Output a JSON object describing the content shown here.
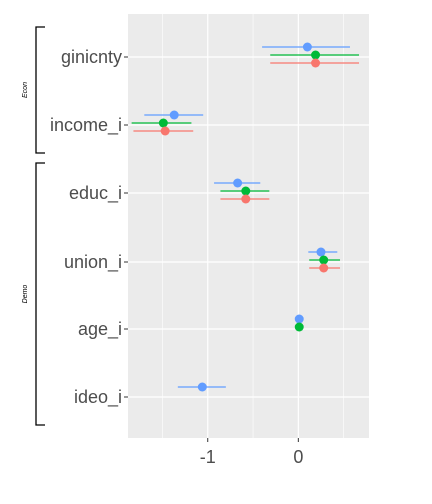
{
  "chart_data": {
    "type": "scatter",
    "variant": "coefficient-plot",
    "categories": [
      "ginicnty",
      "income_i",
      "educ_i",
      "union_i",
      "age_i",
      "ideo_i"
    ],
    "x_ticks": [
      -1,
      0
    ],
    "x_tick_labels": [
      "-1",
      "0"
    ],
    "xlim": [
      -1.88,
      0.78
    ],
    "grid": true,
    "legend": "none",
    "groups": [
      {
        "label": "Econ",
        "categories": [
          "ginicnty",
          "income_i"
        ]
      },
      {
        "label": "Demo",
        "categories": [
          "educ_i",
          "union_i",
          "age_i",
          "ideo_i"
        ]
      }
    ],
    "series": [
      {
        "color": "#619CFF",
        "points": [
          {
            "category": "ginicnty",
            "estimate": 0.1,
            "low": -0.4,
            "high": 0.57
          },
          {
            "category": "income_i",
            "estimate": -1.37,
            "low": -1.7,
            "high": -1.05
          },
          {
            "category": "educ_i",
            "estimate": -0.67,
            "low": -0.93,
            "high": -0.42
          },
          {
            "category": "union_i",
            "estimate": 0.25,
            "low": 0.11,
            "high": 0.43
          },
          {
            "category": "age_i",
            "estimate": 0.01,
            "low": 0.0,
            "high": 0.02
          },
          {
            "category": "ideo_i",
            "estimate": -1.06,
            "low": -1.33,
            "high": -0.8
          }
        ]
      },
      {
        "color": "#00BA38",
        "points": [
          {
            "category": "ginicnty",
            "estimate": 0.19,
            "low": -0.31,
            "high": 0.67
          },
          {
            "category": "income_i",
            "estimate": -1.49,
            "low": -1.84,
            "high": -1.18
          },
          {
            "category": "educ_i",
            "estimate": -0.58,
            "low": -0.86,
            "high": -0.32
          },
          {
            "category": "union_i",
            "estimate": 0.28,
            "low": 0.12,
            "high": 0.46
          },
          {
            "category": "age_i",
            "estimate": 0.01,
            "low": 0.0,
            "high": 0.02
          }
        ]
      },
      {
        "color": "#F8766D",
        "points": [
          {
            "category": "ginicnty",
            "estimate": 0.19,
            "low": -0.31,
            "high": 0.67
          },
          {
            "category": "income_i",
            "estimate": -1.47,
            "low": -1.82,
            "high": -1.16
          },
          {
            "category": "educ_i",
            "estimate": -0.58,
            "low": -0.86,
            "high": -0.32
          },
          {
            "category": "union_i",
            "estimate": 0.28,
            "low": 0.12,
            "high": 0.46
          }
        ]
      }
    ]
  },
  "colors": {
    "panel_background": "#EBEBEB",
    "grid_line": "#FFFFFF",
    "axis_text": "#4D4D4D",
    "bracket": "#000000"
  }
}
